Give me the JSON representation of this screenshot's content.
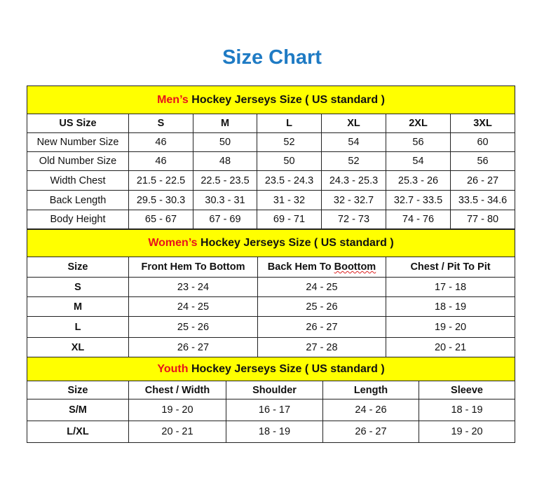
{
  "title": "Size Chart",
  "colors": {
    "title": "#1f7bc4",
    "band": "#ffff00",
    "highlight": "#e8131b"
  },
  "men": {
    "label_highlight": "Men’s",
    "label_rest": " Hockey Jerseys Size ( US standard )",
    "headers": [
      "US Size",
      "S",
      "M",
      "L",
      "XL",
      "2XL",
      "3XL"
    ],
    "rows": [
      [
        "New Number Size",
        "46",
        "50",
        "52",
        "54",
        "56",
        "60"
      ],
      [
        "Old Number Size",
        "46",
        "48",
        "50",
        "52",
        "54",
        "56"
      ],
      [
        "Width Chest",
        "21.5 - 22.5",
        "22.5 - 23.5",
        "23.5 - 24.3",
        "24.3 - 25.3",
        "25.3 - 26",
        "26 - 27"
      ],
      [
        "Back Length",
        "29.5 - 30.3",
        "30.3 - 31",
        "31 - 32",
        "32 - 32.7",
        "32.7 - 33.5",
        "33.5 - 34.6"
      ],
      [
        "Body Height",
        "65 - 67",
        "67 - 69",
        "69 - 71",
        "72 - 73",
        "74 - 76",
        "77 - 80"
      ]
    ]
  },
  "women": {
    "label_highlight": "Women’s",
    "label_rest": " Hockey Jerseys Size ( US standard )",
    "headers": [
      "Size",
      "Front Hem To Bottom",
      "Back Hem To ",
      "Boottom",
      "Chest / Pit To Pit"
    ],
    "rows": [
      [
        "S",
        "23 - 24",
        "24 - 25",
        "17 - 18"
      ],
      [
        "M",
        "24 - 25",
        "25 - 26",
        "18 - 19"
      ],
      [
        "L",
        "25 - 26",
        "26 - 27",
        "19 - 20"
      ],
      [
        "XL",
        "26 - 27",
        "27 - 28",
        "20 - 21"
      ]
    ]
  },
  "youth": {
    "label_highlight": "Youth",
    "label_rest": " Hockey Jerseys Size ( US standard )",
    "headers": [
      "Size",
      "Chest / Width",
      "Shoulder",
      "Length",
      "Sleeve"
    ],
    "rows": [
      [
        "S/M",
        "19 - 20",
        "16 - 17",
        "24 - 26",
        "18 - 19"
      ],
      [
        "L/XL",
        "20 - 21",
        "18 - 19",
        "26 - 27",
        "19 - 20"
      ]
    ]
  }
}
